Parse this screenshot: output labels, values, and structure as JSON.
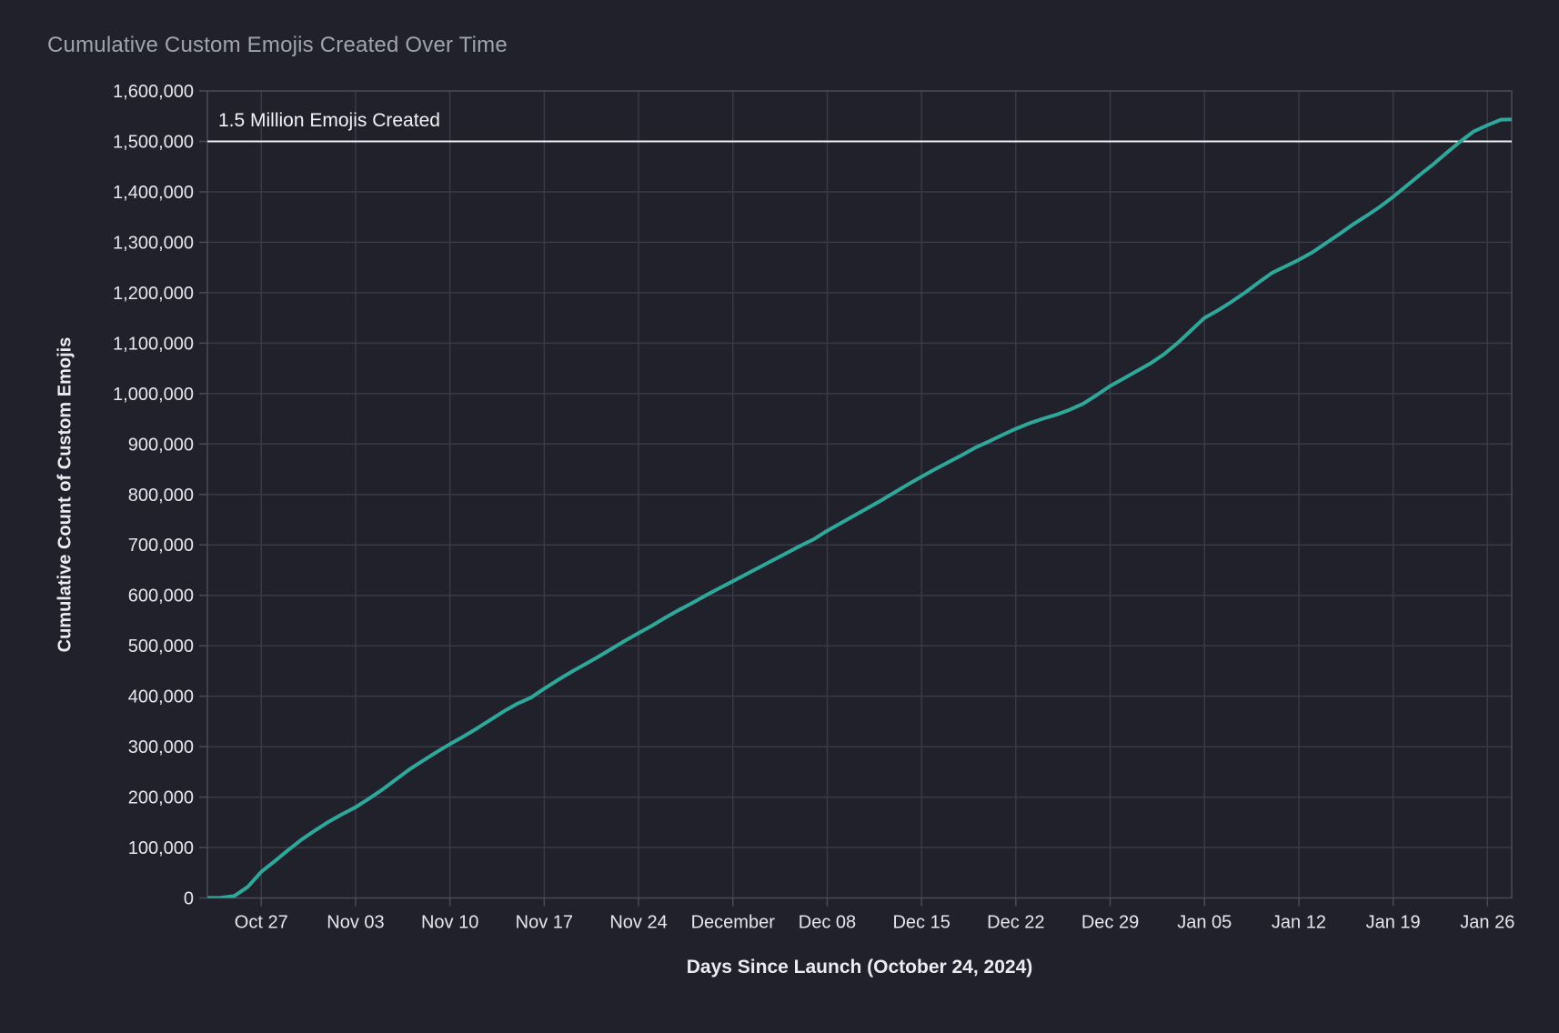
{
  "page": {
    "background_color": "#21212b"
  },
  "chart_data": {
    "type": "line",
    "title": "Cumulative Custom Emojis Created Over Time",
    "xlabel": "Days Since Launch (October 24, 2024)",
    "ylabel": "Cumulative Count of Custom Emojis",
    "grid": true,
    "legend": false,
    "ylim": [
      0,
      1600000
    ],
    "y_tick_step": 100000,
    "xlim_days": [
      -1,
      95.8
    ],
    "x_tick_days": [
      3,
      10,
      17,
      24,
      31,
      38,
      45,
      52,
      59,
      66,
      73,
      80,
      87,
      94
    ],
    "x_tick_labels": [
      "Oct 27",
      "Nov 03",
      "Nov 10",
      "Nov 17",
      "Nov 24",
      "December",
      "Dec 08",
      "Dec 15",
      "Dec 22",
      "Dec 29",
      "Jan 05",
      "Jan 12",
      "Jan 19",
      "Jan 26"
    ],
    "reference_line": {
      "value": 1500000,
      "label": "1.5 Million Emojis Created",
      "color": "#eef0f4"
    },
    "colors": {
      "background": "#21212b",
      "grid": "#3a3a46",
      "axis_border": "#4b4b58",
      "tick_label": "#e6e7ee",
      "title": "#9fa3b0",
      "axis_title": "#ebebf1",
      "line": "#2fa79a"
    },
    "series": [
      {
        "name": "Cumulative Custom Emojis",
        "color": "#2fa79a",
        "points_day_value": [
          [
            -1,
            0
          ],
          [
            0,
            500
          ],
          [
            1,
            4000
          ],
          [
            2,
            22000
          ],
          [
            3,
            52000
          ],
          [
            4,
            73000
          ],
          [
            5,
            95000
          ],
          [
            6,
            116000
          ],
          [
            7,
            134000
          ],
          [
            8,
            151000
          ],
          [
            9,
            166000
          ],
          [
            10,
            180000
          ],
          [
            11,
            197000
          ],
          [
            12,
            215000
          ],
          [
            13,
            235000
          ],
          [
            14,
            255000
          ],
          [
            15,
            272000
          ],
          [
            16,
            289000
          ],
          [
            17,
            305000
          ],
          [
            18,
            320000
          ],
          [
            19,
            336000
          ],
          [
            20,
            353000
          ],
          [
            21,
            370000
          ],
          [
            22,
            385000
          ],
          [
            23,
            397000
          ],
          [
            24,
            415000
          ],
          [
            25,
            432000
          ],
          [
            26,
            448000
          ],
          [
            27,
            463000
          ],
          [
            28,
            478000
          ],
          [
            29,
            494000
          ],
          [
            30,
            510000
          ],
          [
            31,
            525000
          ],
          [
            32,
            540000
          ],
          [
            33,
            556000
          ],
          [
            34,
            571000
          ],
          [
            35,
            585000
          ],
          [
            36,
            600000
          ],
          [
            37,
            614000
          ],
          [
            38,
            628000
          ],
          [
            39,
            642000
          ],
          [
            40,
            656000
          ],
          [
            41,
            670000
          ],
          [
            42,
            684000
          ],
          [
            43,
            698000
          ],
          [
            44,
            711000
          ],
          [
            45,
            728000
          ],
          [
            46,
            743000
          ],
          [
            47,
            758000
          ],
          [
            48,
            773000
          ],
          [
            49,
            788000
          ],
          [
            50,
            804000
          ],
          [
            51,
            820000
          ],
          [
            52,
            835000
          ],
          [
            53,
            850000
          ],
          [
            54,
            864000
          ],
          [
            55,
            878000
          ],
          [
            56,
            893000
          ],
          [
            57,
            905000
          ],
          [
            58,
            918000
          ],
          [
            59,
            930000
          ],
          [
            60,
            941000
          ],
          [
            61,
            950000
          ],
          [
            62,
            958000
          ],
          [
            63,
            968000
          ],
          [
            64,
            980000
          ],
          [
            65,
            997000
          ],
          [
            66,
            1015000
          ],
          [
            67,
            1030000
          ],
          [
            68,
            1045000
          ],
          [
            69,
            1060000
          ],
          [
            70,
            1078000
          ],
          [
            71,
            1100000
          ],
          [
            72,
            1125000
          ],
          [
            73,
            1150000
          ],
          [
            74,
            1165000
          ],
          [
            75,
            1182000
          ],
          [
            76,
            1200000
          ],
          [
            77,
            1220000
          ],
          [
            78,
            1239000
          ],
          [
            79,
            1252000
          ],
          [
            80,
            1265000
          ],
          [
            81,
            1280000
          ],
          [
            82,
            1298000
          ],
          [
            83,
            1316000
          ],
          [
            84,
            1335000
          ],
          [
            85,
            1352000
          ],
          [
            86,
            1370000
          ],
          [
            87,
            1390000
          ],
          [
            88,
            1412000
          ],
          [
            89,
            1434000
          ],
          [
            90,
            1455000
          ],
          [
            91,
            1478000
          ],
          [
            92,
            1500000
          ],
          [
            93,
            1520000
          ],
          [
            94,
            1532000
          ],
          [
            95,
            1543000
          ],
          [
            96,
            1544000
          ]
        ]
      }
    ]
  }
}
